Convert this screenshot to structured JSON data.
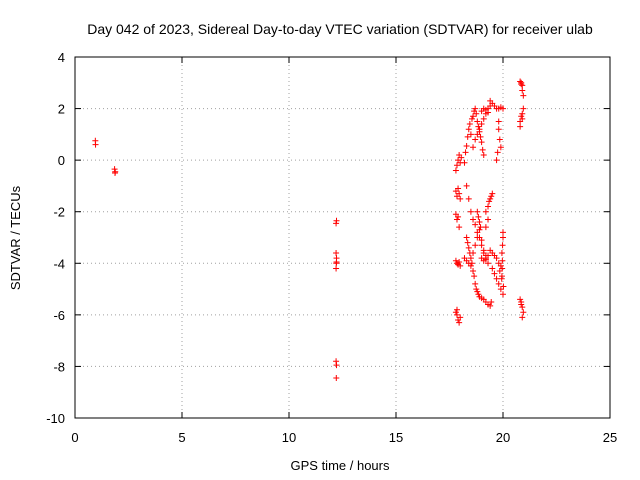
{
  "chart_data": {
    "type": "scatter",
    "title": "Day 042 of 2023, Sidereal Day-to-day VTEC variation (SDTVAR) for receiver ulab",
    "xlabel": "GPS time / hours",
    "ylabel": "SDTVAR / TECUs",
    "xlim": [
      0,
      25
    ],
    "ylim": [
      -10,
      4
    ],
    "xticks": [
      0,
      5,
      10,
      15,
      20,
      25
    ],
    "yticks": [
      -10,
      -8,
      -6,
      -4,
      -2,
      0,
      2,
      4
    ],
    "grid": true,
    "marker": "+",
    "color": "#ff0000",
    "series": [
      {
        "name": "SDTVAR",
        "points": [
          [
            0.95,
            0.75
          ],
          [
            0.96,
            0.6
          ],
          [
            1.85,
            -0.35
          ],
          [
            1.87,
            -0.5
          ],
          [
            1.88,
            -0.45
          ],
          [
            12.2,
            -2.45
          ],
          [
            12.22,
            -2.35
          ],
          [
            12.2,
            -3.6
          ],
          [
            12.22,
            -3.8
          ],
          [
            12.21,
            -4.0
          ],
          [
            12.2,
            -4.2
          ],
          [
            12.22,
            -3.95
          ],
          [
            12.2,
            -7.8
          ],
          [
            12.22,
            -7.95
          ],
          [
            12.21,
            -8.45
          ],
          [
            17.8,
            -0.4
          ],
          [
            17.85,
            -0.2
          ],
          [
            17.9,
            0.0
          ],
          [
            17.95,
            0.2
          ],
          [
            18.0,
            -0.1
          ],
          [
            18.05,
            0.1
          ],
          [
            17.8,
            -1.2
          ],
          [
            17.85,
            -1.4
          ],
          [
            17.9,
            -1.1
          ],
          [
            17.95,
            -1.3
          ],
          [
            18.0,
            -1.5
          ],
          [
            17.8,
            -2.1
          ],
          [
            17.85,
            -2.3
          ],
          [
            17.9,
            -2.2
          ],
          [
            17.95,
            -2.6
          ],
          [
            17.8,
            -3.9
          ],
          [
            17.85,
            -4.0
          ],
          [
            17.9,
            -4.05
          ],
          [
            17.95,
            -3.95
          ],
          [
            18.0,
            -4.1
          ],
          [
            17.8,
            -5.9
          ],
          [
            17.85,
            -6.0
          ],
          [
            17.9,
            -6.2
          ],
          [
            17.95,
            -6.3
          ],
          [
            18.0,
            -6.1
          ],
          [
            17.85,
            -5.8
          ],
          [
            18.2,
            -0.1
          ],
          [
            18.25,
            0.3
          ],
          [
            18.3,
            0.55
          ],
          [
            18.35,
            0.9
          ],
          [
            18.4,
            1.2
          ],
          [
            18.45,
            1.4
          ],
          [
            18.5,
            1.0
          ],
          [
            18.55,
            1.6
          ],
          [
            18.6,
            1.7
          ],
          [
            18.65,
            1.9
          ],
          [
            18.7,
            2.0
          ],
          [
            18.75,
            1.8
          ],
          [
            18.8,
            1.5
          ],
          [
            18.85,
            1.3
          ],
          [
            18.9,
            1.1
          ],
          [
            18.95,
            0.9
          ],
          [
            19.0,
            0.7
          ],
          [
            19.05,
            0.4
          ],
          [
            19.1,
            0.2
          ],
          [
            18.6,
            0.5
          ],
          [
            18.7,
            0.8
          ],
          [
            18.8,
            1.0
          ],
          [
            18.9,
            1.2
          ],
          [
            19.0,
            1.4
          ],
          [
            19.1,
            1.6
          ],
          [
            19.2,
            1.8
          ],
          [
            19.3,
            2.0
          ],
          [
            19.4,
            2.1
          ],
          [
            19.5,
            2.2
          ],
          [
            19.6,
            2.1
          ],
          [
            19.7,
            2.0
          ],
          [
            19.8,
            2.0
          ],
          [
            19.9,
            2.05
          ],
          [
            20.0,
            2.0
          ],
          [
            19.0,
            1.9
          ],
          [
            19.1,
            2.0
          ],
          [
            19.2,
            1.95
          ],
          [
            19.3,
            1.85
          ],
          [
            19.4,
            2.3
          ],
          [
            19.8,
            1.2
          ],
          [
            19.85,
            0.8
          ],
          [
            19.9,
            0.5
          ],
          [
            19.75,
            0.3
          ],
          [
            19.7,
            0.0
          ],
          [
            19.8,
            1.5
          ],
          [
            18.3,
            -1.0
          ],
          [
            18.4,
            -1.5
          ],
          [
            18.5,
            -2.0
          ],
          [
            18.6,
            -2.3
          ],
          [
            18.7,
            -2.5
          ],
          [
            18.8,
            -2.8
          ],
          [
            18.9,
            -3.0
          ],
          [
            19.0,
            -3.3
          ],
          [
            19.1,
            -3.6
          ],
          [
            19.2,
            -3.8
          ],
          [
            19.3,
            -4.0
          ],
          [
            18.3,
            -3.0
          ],
          [
            18.35,
            -3.2
          ],
          [
            18.4,
            -3.4
          ],
          [
            18.45,
            -3.6
          ],
          [
            18.5,
            -3.8
          ],
          [
            18.55,
            -4.0
          ],
          [
            18.6,
            -4.3
          ],
          [
            18.65,
            -4.5
          ],
          [
            18.7,
            -4.8
          ],
          [
            18.75,
            -5.0
          ],
          [
            18.8,
            -5.1
          ],
          [
            18.85,
            -5.2
          ],
          [
            18.9,
            -5.3
          ],
          [
            19.0,
            -5.35
          ],
          [
            19.1,
            -5.4
          ],
          [
            19.2,
            -5.5
          ],
          [
            19.3,
            -5.6
          ],
          [
            19.4,
            -5.65
          ],
          [
            19.45,
            -5.5
          ],
          [
            18.2,
            -3.8
          ],
          [
            18.3,
            -3.9
          ],
          [
            18.4,
            -4.0
          ],
          [
            18.5,
            -4.1
          ],
          [
            18.6,
            -3.6
          ],
          [
            18.7,
            -3.3
          ],
          [
            18.8,
            -3.0
          ],
          [
            18.9,
            -2.7
          ],
          [
            19.0,
            -3.1
          ],
          [
            19.1,
            -3.5
          ],
          [
            19.2,
            -3.7
          ],
          [
            19.0,
            -3.8
          ],
          [
            19.1,
            -3.9
          ],
          [
            19.2,
            -3.85
          ],
          [
            19.3,
            -3.7
          ],
          [
            19.4,
            -3.5
          ],
          [
            19.5,
            -3.6
          ],
          [
            19.6,
            -3.7
          ],
          [
            19.7,
            -3.8
          ],
          [
            19.8,
            -4.0
          ],
          [
            19.9,
            -4.1
          ],
          [
            19.2,
            -2.0
          ],
          [
            19.3,
            -1.8
          ],
          [
            19.35,
            -1.6
          ],
          [
            19.4,
            -1.5
          ],
          [
            19.45,
            -1.4
          ],
          [
            19.5,
            -1.3
          ],
          [
            19.3,
            -2.3
          ],
          [
            19.2,
            -2.6
          ],
          [
            18.8,
            -2.0
          ],
          [
            18.85,
            -2.2
          ],
          [
            18.9,
            -2.4
          ],
          [
            18.95,
            -2.6
          ],
          [
            19.5,
            -4.2
          ],
          [
            19.6,
            -4.4
          ],
          [
            19.7,
            -4.6
          ],
          [
            19.8,
            -4.8
          ],
          [
            19.9,
            -5.0
          ],
          [
            20.0,
            -5.2
          ],
          [
            19.95,
            -4.5
          ],
          [
            19.85,
            -4.3
          ],
          [
            20.0,
            -2.8
          ],
          [
            20.0,
            -3.0
          ],
          [
            19.98,
            -3.3
          ],
          [
            19.95,
            -3.6
          ],
          [
            19.97,
            -3.9
          ],
          [
            19.96,
            -4.2
          ],
          [
            19.94,
            -4.6
          ],
          [
            20.02,
            -4.9
          ],
          [
            20.8,
            3.05
          ],
          [
            20.85,
            3.0
          ],
          [
            20.9,
            2.9
          ],
          [
            20.95,
            2.5
          ],
          [
            20.9,
            2.7
          ],
          [
            20.85,
            2.95
          ],
          [
            20.8,
            1.5
          ],
          [
            20.85,
            1.7
          ],
          [
            20.9,
            1.8
          ],
          [
            20.95,
            2.0
          ],
          [
            20.8,
            1.3
          ],
          [
            20.9,
            1.6
          ],
          [
            20.8,
            -5.4
          ],
          [
            20.85,
            -5.6
          ],
          [
            20.9,
            -5.7
          ],
          [
            20.95,
            -5.9
          ],
          [
            20.9,
            -6.1
          ],
          [
            20.85,
            -5.5
          ]
        ]
      }
    ]
  }
}
